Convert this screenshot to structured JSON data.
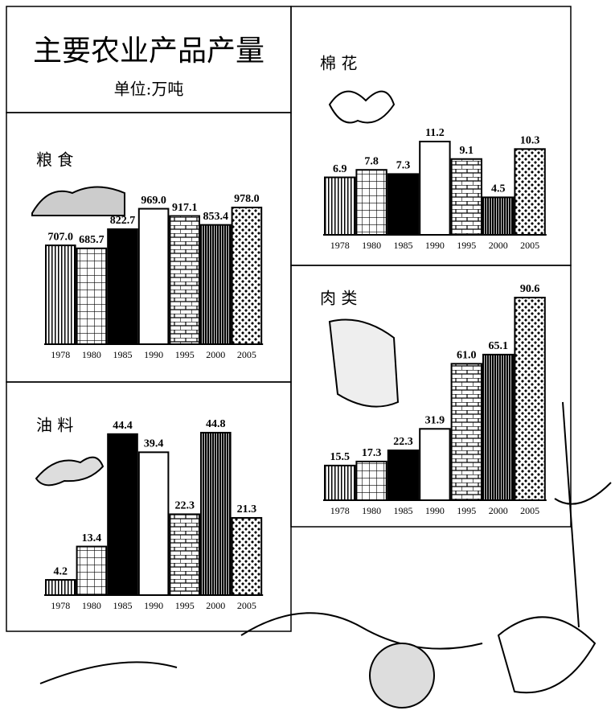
{
  "title": "主要农业产品产量",
  "subtitle": "单位:万吨",
  "chart_data": [
    {
      "type": "bar",
      "title": "粮 食",
      "categories": [
        "1978",
        "1980",
        "1985",
        "1990",
        "1995",
        "2000",
        "2005"
      ],
      "values": [
        707.0,
        685.7,
        822.7,
        969.0,
        917.1,
        853.4,
        978.0
      ],
      "value_labels": [
        "707.0",
        "685.7",
        "822.7",
        "969.0",
        "917.1",
        "853.4",
        "978.0"
      ]
    },
    {
      "type": "bar",
      "title": "油 料",
      "categories": [
        "1978",
        "1980",
        "1985",
        "1990",
        "1995",
        "2000",
        "2005"
      ],
      "values": [
        4.2,
        13.4,
        44.4,
        39.4,
        22.3,
        44.8,
        21.3
      ],
      "value_labels": [
        "4.2",
        "13.4",
        "44.4",
        "39.4",
        "22.3",
        "44.8",
        "21.3"
      ]
    },
    {
      "type": "bar",
      "title": "棉 花",
      "categories": [
        "1978",
        "1980",
        "1985",
        "1990",
        "1995",
        "2000",
        "2005"
      ],
      "values": [
        6.9,
        7.8,
        7.3,
        11.2,
        9.1,
        4.5,
        10.3
      ],
      "value_labels": [
        "6.9",
        "7.8",
        "7.3",
        "11.2",
        "9.1",
        "4.5",
        "10.3"
      ]
    },
    {
      "type": "bar",
      "title": "肉 类",
      "categories": [
        "1978",
        "1980",
        "1985",
        "1990",
        "1995",
        "2000",
        "2005"
      ],
      "values": [
        15.5,
        17.3,
        22.3,
        31.9,
        61.0,
        65.1,
        90.6
      ],
      "value_labels": [
        "15.5",
        "17.3",
        "22.3",
        "31.9",
        "61.0",
        "65.1",
        "90.6"
      ]
    }
  ]
}
